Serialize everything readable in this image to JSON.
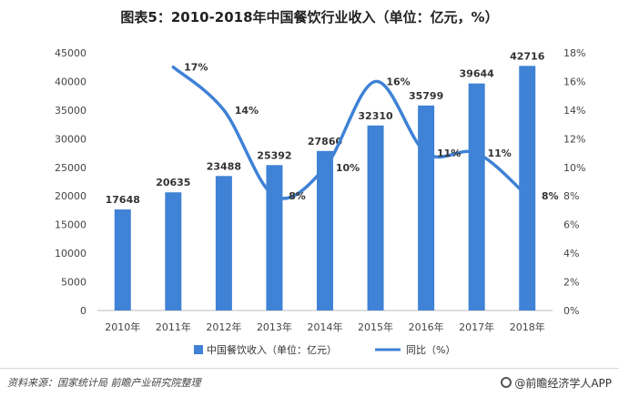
{
  "title": "图表5：2010-2018年中国餐饮行业收入（单位：亿元，%）",
  "chart_data": {
    "type": "bar",
    "categories": [
      "2010年",
      "2011年",
      "2012年",
      "2013年",
      "2014年",
      "2015年",
      "2016年",
      "2017年",
      "2018年"
    ],
    "series": [
      {
        "name": "中国餐饮收入（单位：亿元）",
        "type": "bar",
        "axis": "left",
        "values": [
          17648,
          20635,
          23488,
          25392,
          27860,
          32310,
          35799,
          39644,
          42716
        ],
        "data_labels": [
          "17648",
          "20635",
          "23488",
          "25392",
          "27860",
          "32310",
          "35799",
          "39644",
          "42716"
        ],
        "color": "#3f82d6"
      },
      {
        "name": "同比（%）",
        "type": "line",
        "axis": "right",
        "values": [
          null,
          17,
          14,
          8,
          10,
          16,
          11,
          11,
          8
        ],
        "data_labels": [
          "",
          "17%",
          "14%",
          "8%",
          "10%",
          "16%",
          "11%",
          "11%",
          "8%"
        ],
        "color": "#3f82d6"
      }
    ],
    "ylim_left": [
      0,
      45000
    ],
    "yticks_left": [
      "0",
      "5000",
      "10000",
      "15000",
      "20000",
      "25000",
      "30000",
      "35000",
      "40000",
      "45000"
    ],
    "ylim_right": [
      0,
      18
    ],
    "yticks_right": [
      "0%",
      "2%",
      "4%",
      "6%",
      "8%",
      "10%",
      "12%",
      "14%",
      "16%",
      "18%"
    ],
    "grid": false,
    "legend_position": "bottom"
  },
  "footer": {
    "source": "资料来源：国家统计局 前瞻产业研究院整理",
    "brand": "@前瞻经济学人APP"
  }
}
